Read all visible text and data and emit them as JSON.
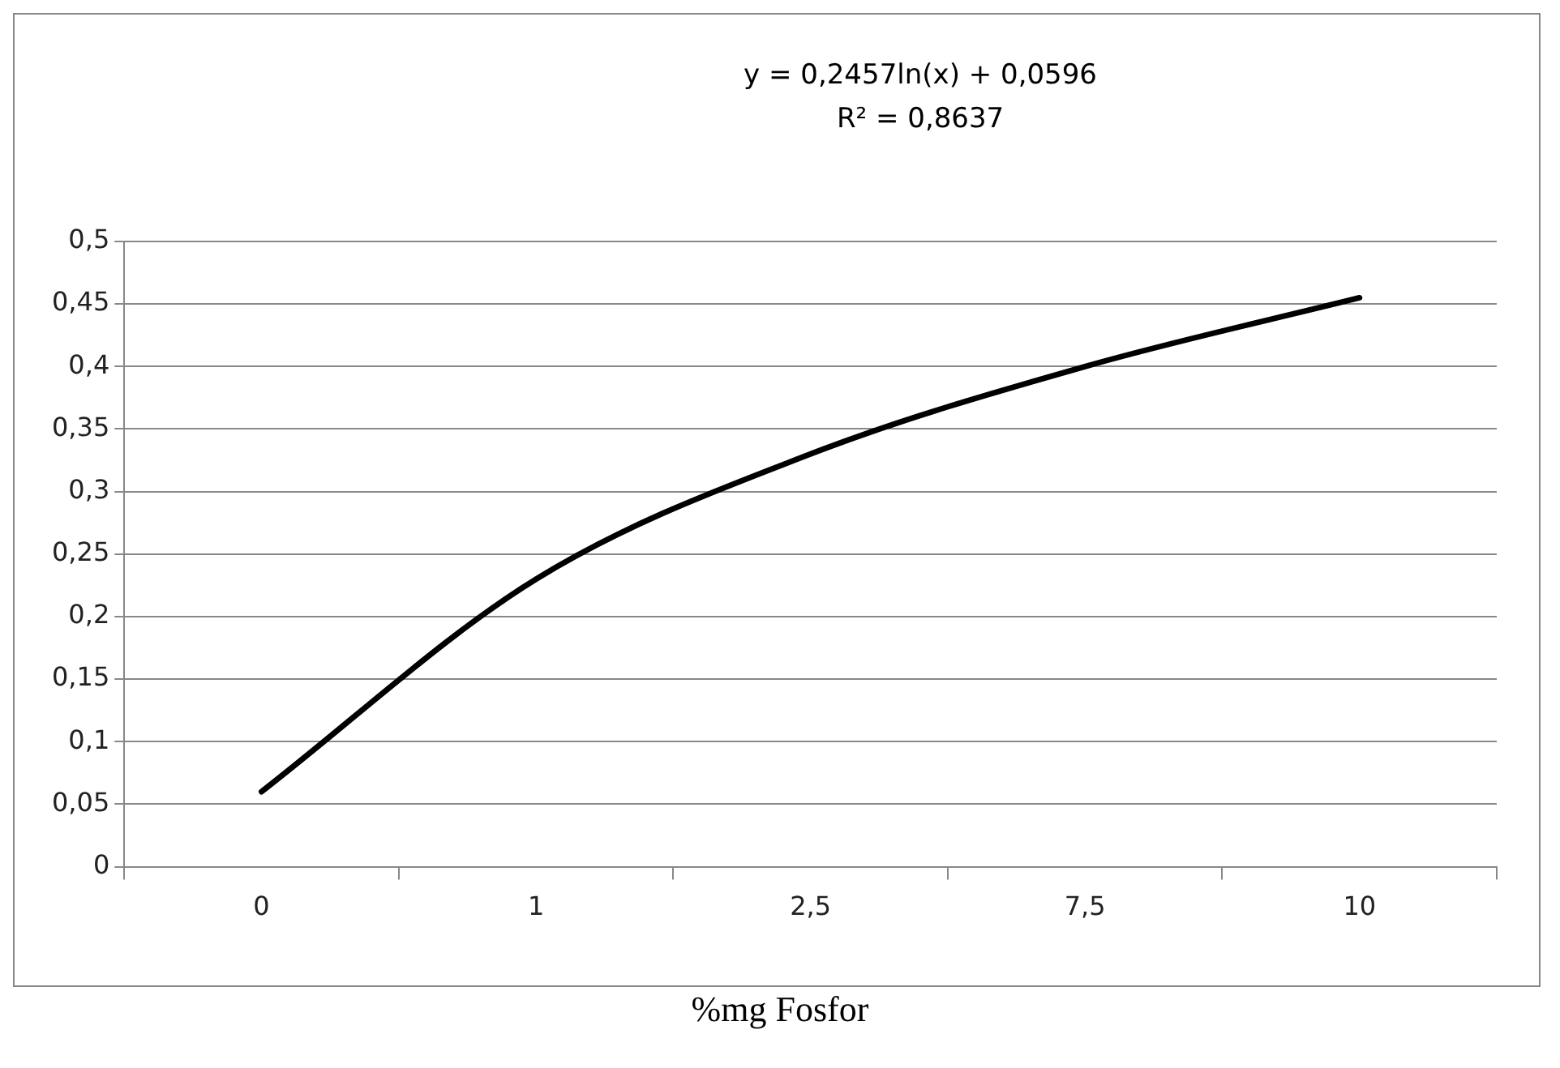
{
  "chart_data": {
    "type": "line",
    "xlabel": "%mg Fosfor",
    "categories": [
      "0",
      "1",
      "2,5",
      "7,5",
      "10"
    ],
    "series": [
      {
        "color": "#000000",
        "values": [
          0.06,
          0.23,
          0.33,
          0.4,
          0.455
        ]
      }
    ],
    "ylim": [
      0,
      0.5
    ],
    "yticks": [
      0,
      {
        "value": 0.05,
        "label": "0,05"
      },
      {
        "value": 0.1,
        "label": "0,1"
      },
      {
        "value": 0.15,
        "label": "0,15"
      },
      {
        "value": 0.2,
        "label": "0,2"
      },
      {
        "value": 0.25,
        "label": "0,25"
      },
      {
        "value": 0.3,
        "label": "0,3"
      },
      {
        "value": 0.35,
        "label": "0,35"
      },
      {
        "value": 0.4,
        "label": "0,4"
      },
      {
        "value": 0.45,
        "label": "0,45"
      },
      {
        "value": 0.5,
        "label": "0,5"
      }
    ],
    "grid": "y",
    "legend": false,
    "marker": "none",
    "line_style": "solid",
    "annotations": [
      "y = 0,2457ln(x) + 0,0596",
      "R² = 0,8637"
    ]
  }
}
